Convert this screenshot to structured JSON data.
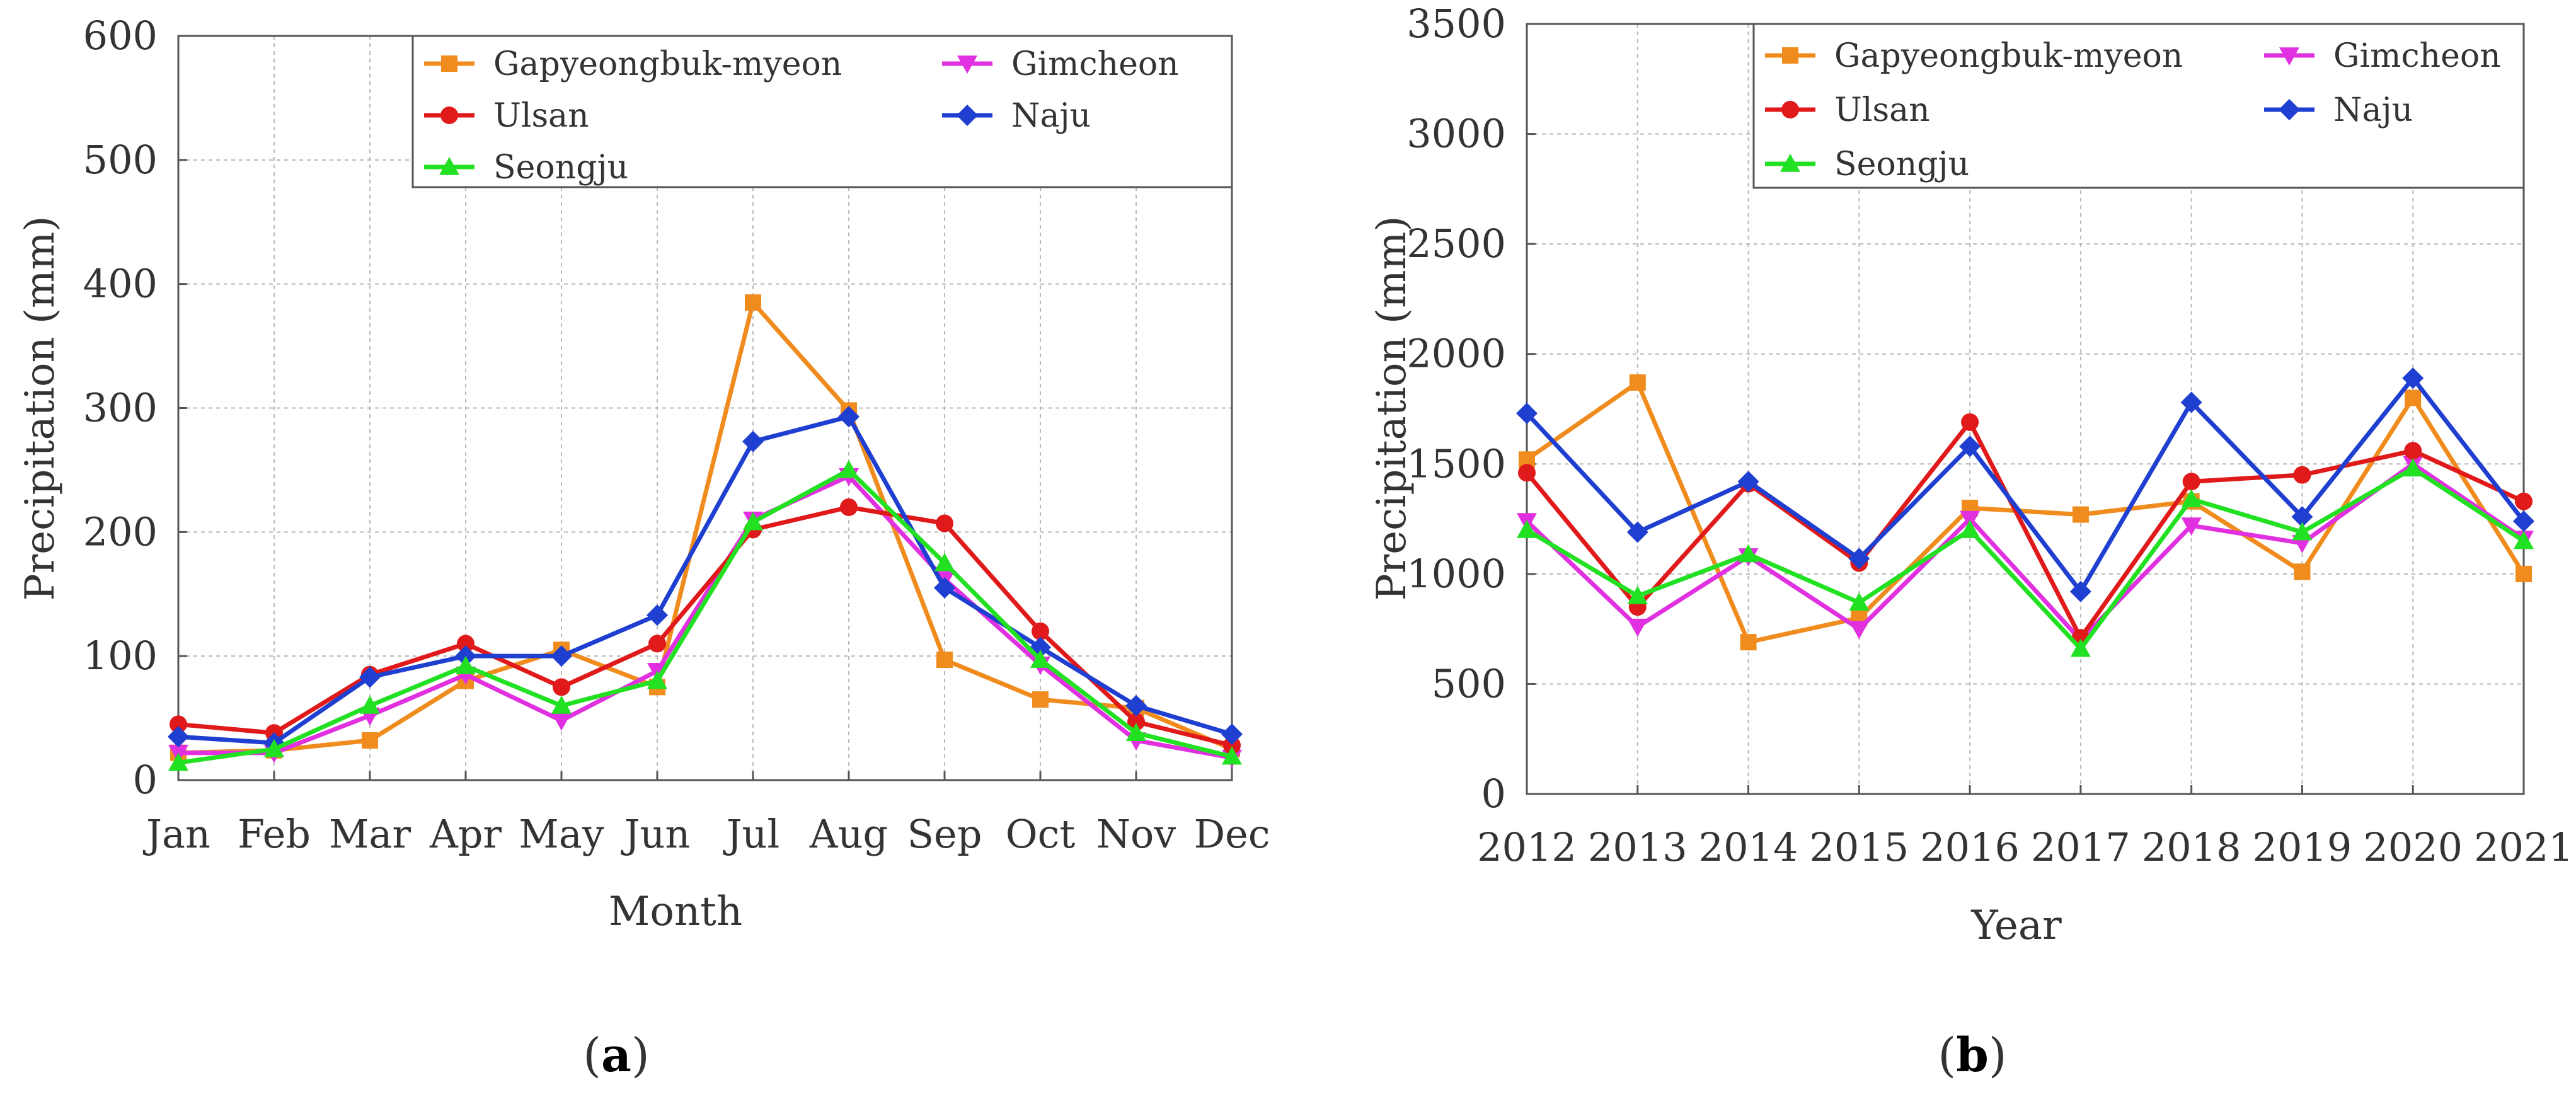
{
  "colors": {
    "Gapyeongbuk-myeon": "#f08c1e",
    "Gimcheon": "#e030e0",
    "Ulsan": "#e01a1a",
    "Naju": "#1f3fd0",
    "Seongju": "#22e022"
  },
  "chart_data": [
    {
      "type": "line",
      "panel_label": "(a)",
      "panel_letter": "a",
      "xlabel": "Month",
      "ylabel": "Precipitation (mm)",
      "ylim": [
        0,
        600
      ],
      "yticks": [
        0,
        100,
        200,
        300,
        400,
        500,
        600
      ],
      "grid": true,
      "legend_position": "top-right",
      "categories": [
        "Jan",
        "Feb",
        "Mar",
        "Apr",
        "May",
        "Jun",
        "Jul",
        "Aug",
        "Sep",
        "Oct",
        "Nov",
        "Dec"
      ],
      "series": [
        {
          "name": "Gapyeongbuk-myeon",
          "marker": "square",
          "values": [
            22,
            24,
            32,
            80,
            105,
            75,
            385,
            298,
            97,
            65,
            58,
            25
          ]
        },
        {
          "name": "Gimcheon",
          "marker": "triangle-down",
          "values": [
            22,
            22,
            52,
            85,
            48,
            88,
            210,
            245,
            162,
            93,
            32,
            18
          ]
        },
        {
          "name": "Ulsan",
          "marker": "circle",
          "values": [
            45,
            38,
            85,
            110,
            75,
            110,
            202,
            220,
            207,
            120,
            47,
            28
          ]
        },
        {
          "name": "Naju",
          "marker": "diamond",
          "values": [
            35,
            30,
            83,
            100,
            100,
            133,
            273,
            293,
            155,
            107,
            60,
            37
          ]
        },
        {
          "name": "Seongju",
          "marker": "triangle-up",
          "values": [
            14,
            25,
            60,
            92,
            60,
            80,
            208,
            250,
            175,
            97,
            38,
            19
          ]
        }
      ]
    },
    {
      "type": "line",
      "panel_label": "(b)",
      "panel_letter": "b",
      "xlabel": "Year",
      "ylabel": "Precipitation (mm)",
      "ylim": [
        0,
        3500
      ],
      "yticks": [
        0,
        500,
        1000,
        1500,
        2000,
        2500,
        3000,
        3500
      ],
      "grid": true,
      "legend_position": "top-right",
      "categories": [
        "2012",
        "2013",
        "2014",
        "2015",
        "2016",
        "2017",
        "2018",
        "2019",
        "2020",
        "2021"
      ],
      "series": [
        {
          "name": "Gapyeongbuk-myeon",
          "marker": "square",
          "values": [
            1520,
            1870,
            690,
            800,
            1300,
            1270,
            1330,
            1010,
            1800,
            1000
          ]
        },
        {
          "name": "Gimcheon",
          "marker": "triangle-down",
          "values": [
            1240,
            760,
            1080,
            750,
            1250,
            700,
            1220,
            1140,
            1500,
            1160
          ]
        },
        {
          "name": "Ulsan",
          "marker": "circle",
          "values": [
            1460,
            850,
            1410,
            1050,
            1690,
            710,
            1420,
            1450,
            1560,
            1330
          ]
        },
        {
          "name": "Naju",
          "marker": "diamond",
          "values": [
            1730,
            1190,
            1420,
            1070,
            1580,
            920,
            1780,
            1260,
            1890,
            1240
          ]
        },
        {
          "name": "Seongju",
          "marker": "triangle-up",
          "values": [
            1200,
            900,
            1090,
            870,
            1200,
            660,
            1340,
            1190,
            1480,
            1150
          ]
        }
      ]
    }
  ]
}
